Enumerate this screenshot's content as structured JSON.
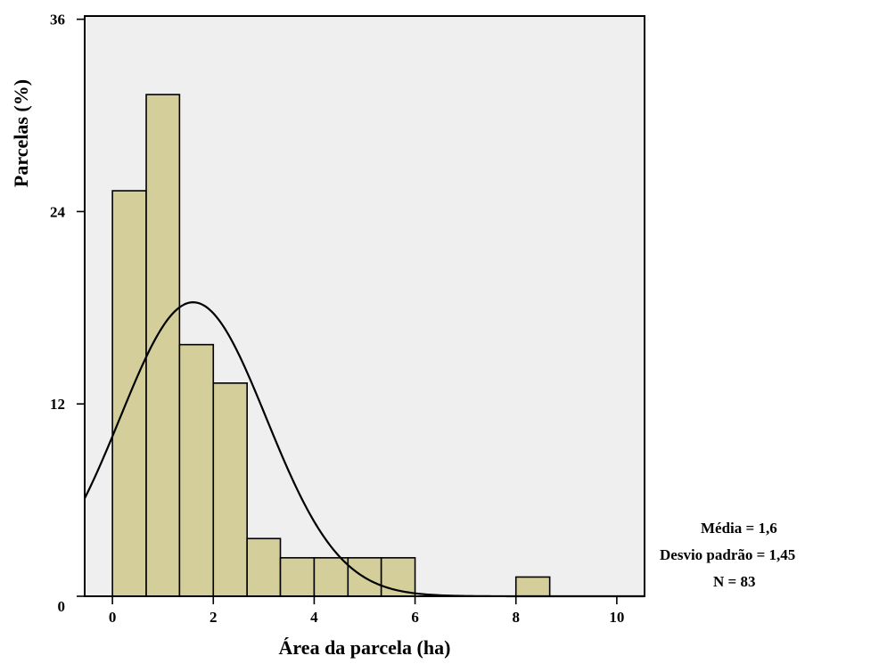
{
  "chart_data": {
    "type": "histogram",
    "title": "",
    "xlabel": "Área da parcela (ha)",
    "ylabel": "Parcelas (%)",
    "xlim": [
      -0.55,
      10.55
    ],
    "ylim": [
      0,
      36.2
    ],
    "x_ticks": [
      0,
      2,
      4,
      6,
      8,
      10
    ],
    "y_ticks": [
      0,
      12,
      24,
      36
    ],
    "bins": [
      {
        "x0": 0.0,
        "x1": 0.67,
        "value": 25.3
      },
      {
        "x0": 0.67,
        "x1": 1.33,
        "value": 31.3
      },
      {
        "x0": 1.33,
        "x1": 2.0,
        "value": 15.7
      },
      {
        "x0": 2.0,
        "x1": 2.67,
        "value": 13.3
      },
      {
        "x0": 2.67,
        "x1": 3.33,
        "value": 3.6
      },
      {
        "x0": 3.33,
        "x1": 4.0,
        "value": 2.4
      },
      {
        "x0": 4.0,
        "x1": 4.67,
        "value": 2.4
      },
      {
        "x0": 4.67,
        "x1": 5.33,
        "value": 2.4
      },
      {
        "x0": 5.33,
        "x1": 6.0,
        "value": 2.4
      },
      {
        "x0": 8.0,
        "x1": 8.67,
        "value": 1.2
      }
    ],
    "normal_curve": {
      "mean": 1.6,
      "sd": 1.45,
      "n": 83
    },
    "grid": false,
    "colors": {
      "bar_fill": "#d4cf9a",
      "bar_stroke": "#000000",
      "plot_background": "#efefef",
      "curve": "#000000"
    },
    "stats": {
      "mean_label": "Média = 1,6",
      "sd_label": "Desvio padrão = 1,45",
      "n_label": "N = 83"
    }
  }
}
